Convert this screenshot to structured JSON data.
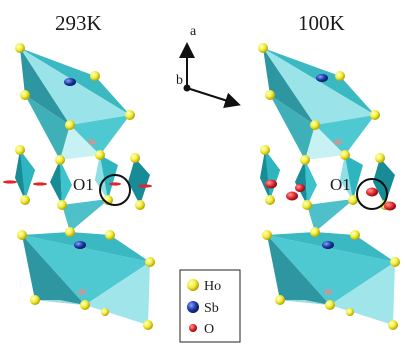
{
  "panels": [
    {
      "temperature": "293K",
      "site_label": "O1"
    },
    {
      "temperature": "100K",
      "site_label": "O1"
    }
  ],
  "axes": {
    "a_label": "a",
    "b_label": "b"
  },
  "legend": [
    {
      "symbol": "Ho",
      "color": "#f2ee3a"
    },
    {
      "symbol": "Sb",
      "color": "#1c3aa8"
    },
    {
      "symbol": "O",
      "color": "#e0262c"
    }
  ],
  "colors": {
    "polyhedron_face": "#2fb5bf",
    "polyhedron_light": "#8fe0e6",
    "polyhedron_dark": "#178b96",
    "ellipsoid": "#e0262c"
  }
}
